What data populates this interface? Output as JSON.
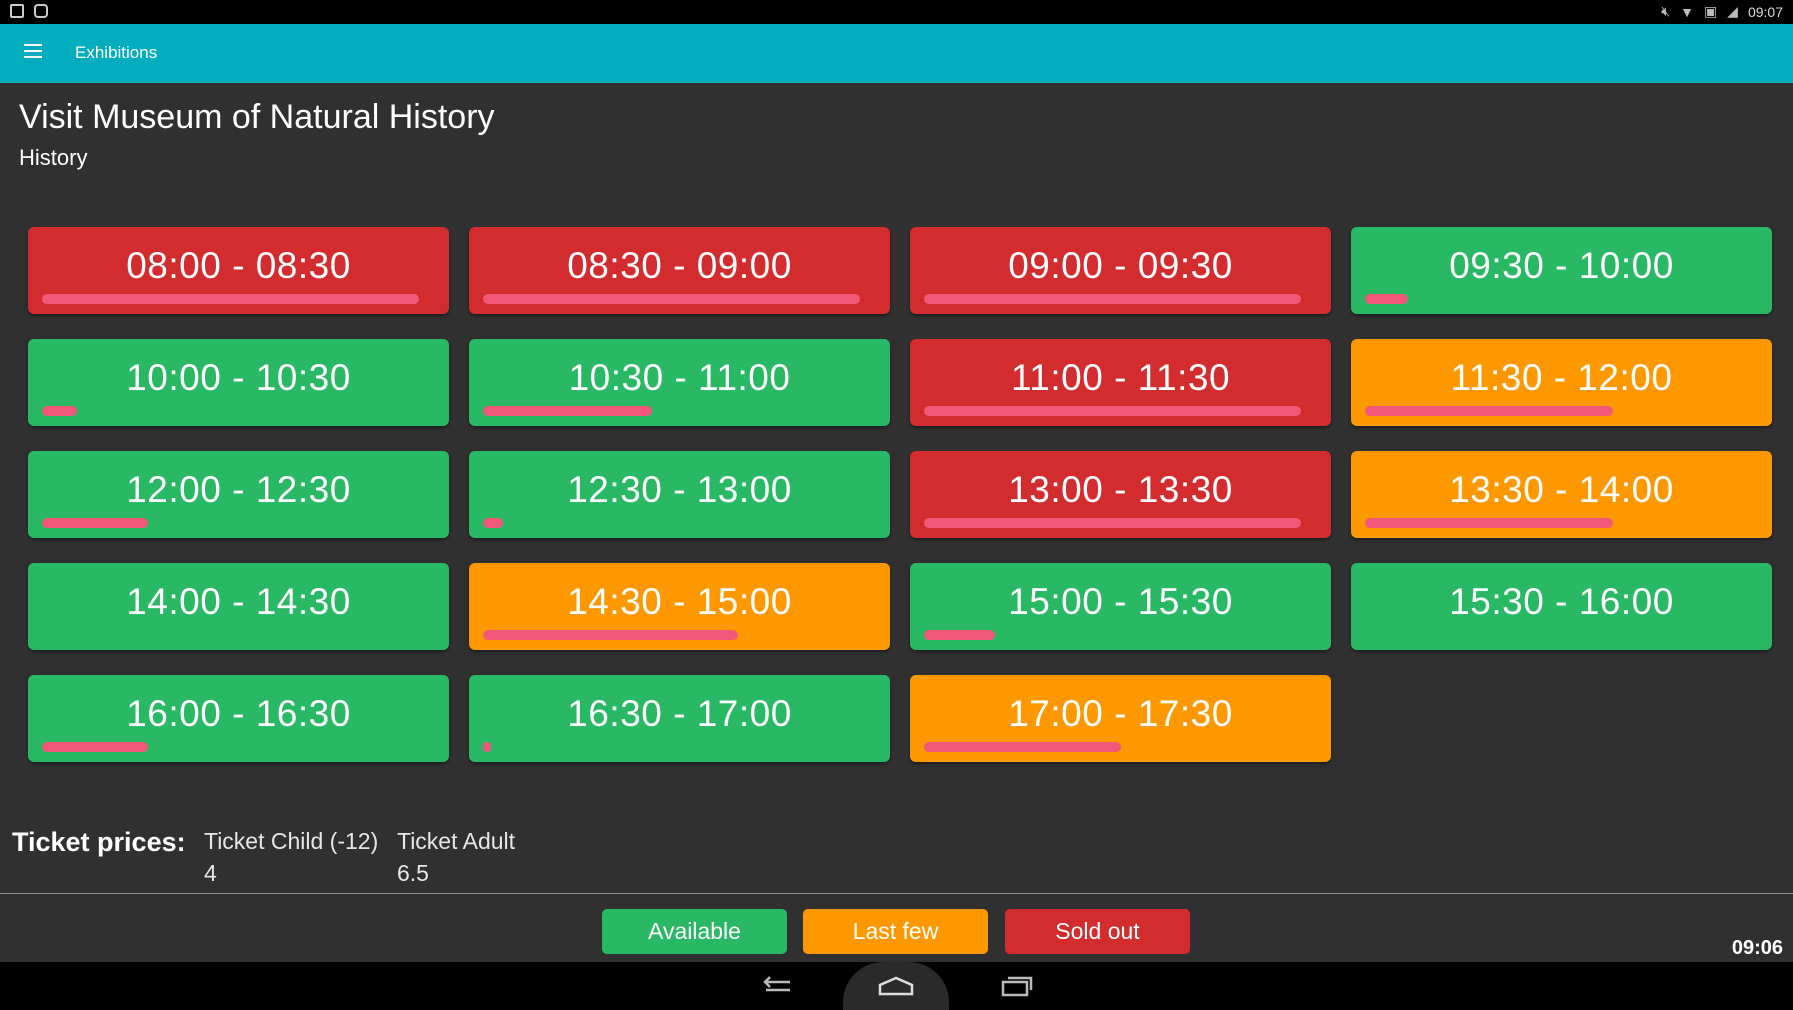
{
  "status_bar": {
    "time": "09:07"
  },
  "app_bar": {
    "title": "Exhibitions"
  },
  "header": {
    "title": "Visit Museum of Natural History",
    "subtitle": "History"
  },
  "slots": [
    {
      "label": "08:00 - 08:30",
      "status": "sold_out",
      "booked_fraction": 0.96
    },
    {
      "label": "08:30 - 09:00",
      "status": "sold_out",
      "booked_fraction": 0.96
    },
    {
      "label": "09:00 - 09:30",
      "status": "sold_out",
      "booked_fraction": 0.96
    },
    {
      "label": "09:30 - 10:00",
      "status": "available",
      "booked_fraction": 0.11
    },
    {
      "label": "10:00 - 10:30",
      "status": "available",
      "booked_fraction": 0.09
    },
    {
      "label": "10:30 - 11:00",
      "status": "available",
      "booked_fraction": 0.43
    },
    {
      "label": "11:00 - 11:30",
      "status": "sold_out",
      "booked_fraction": 0.96
    },
    {
      "label": "11:30 - 12:00",
      "status": "last_few",
      "booked_fraction": 0.63
    },
    {
      "label": "12:00 - 12:30",
      "status": "available",
      "booked_fraction": 0.27
    },
    {
      "label": "12:30 - 13:00",
      "status": "available",
      "booked_fraction": 0.05
    },
    {
      "label": "13:00 - 13:30",
      "status": "sold_out",
      "booked_fraction": 0.96
    },
    {
      "label": "13:30 - 14:00",
      "status": "last_few",
      "booked_fraction": 0.63
    },
    {
      "label": "14:00 - 14:30",
      "status": "available",
      "booked_fraction": 0
    },
    {
      "label": "14:30 - 15:00",
      "status": "last_few",
      "booked_fraction": 0.65
    },
    {
      "label": "15:00 - 15:30",
      "status": "available",
      "booked_fraction": 0.18
    },
    {
      "label": "15:30 - 16:00",
      "status": "available",
      "booked_fraction": 0
    },
    {
      "label": "16:00 - 16:30",
      "status": "available",
      "booked_fraction": 0.27
    },
    {
      "label": "16:30 - 17:00",
      "status": "available",
      "booked_fraction": 0.02
    },
    {
      "label": "17:00 - 17:30",
      "status": "last_few",
      "booked_fraction": 0.5
    }
  ],
  "ticket_prices": {
    "label": "Ticket prices:",
    "child": {
      "name": "Ticket Child (-12)",
      "price": "4"
    },
    "adult": {
      "name": "Ticket Adult",
      "price": "6.5"
    }
  },
  "legend": {
    "available": "Available",
    "last_few": "Last few",
    "sold_out": "Sold out"
  },
  "clock": "09:06",
  "colors": {
    "app_bar": "#02adbd",
    "available": "#29b864",
    "last_few": "#fe9801",
    "sold_out": "#d22c2f",
    "booked_bar": "#f2587a",
    "background": "#303030"
  }
}
